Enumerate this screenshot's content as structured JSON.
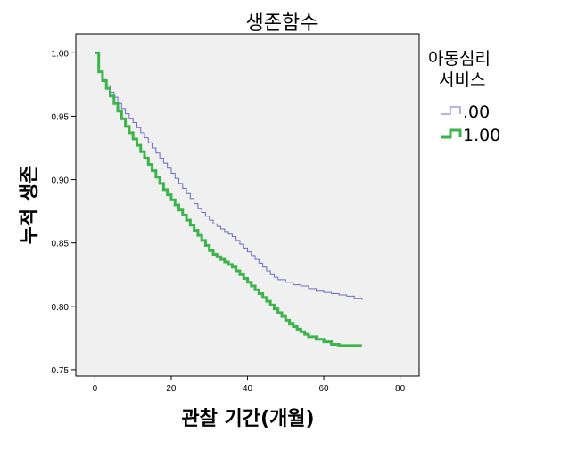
{
  "chart_data": {
    "type": "line",
    "title": "생존함수",
    "xlabel": "관찰 기간(개월)",
    "ylabel": "누적 생존",
    "xlim": [
      -5,
      85
    ],
    "ylim": [
      0.745,
      1.015
    ],
    "x_ticks": [
      0,
      20,
      40,
      60,
      80
    ],
    "y_ticks": [
      0.75,
      0.8,
      0.85,
      0.9,
      0.95,
      1.0
    ],
    "x_tick_labels": [
      "0",
      "20",
      "40",
      "60",
      "80"
    ],
    "y_tick_labels": [
      "0.75",
      "0.80",
      "0.85",
      "0.90",
      "0.95",
      "1.00"
    ],
    "grid": false,
    "legend_title": [
      "아동심리",
      "서비스"
    ],
    "legend_position": "right",
    "series": [
      {
        "name": ".00",
        "color": "#6b6bbf",
        "step": true,
        "x": [
          0,
          1,
          2,
          3,
          4,
          5,
          6,
          7,
          8,
          9,
          10,
          11,
          12,
          13,
          14,
          15,
          16,
          17,
          18,
          19,
          20,
          21,
          22,
          23,
          24,
          25,
          26,
          27,
          28,
          29,
          30,
          31,
          32,
          33,
          34,
          35,
          36,
          37,
          38,
          39,
          40,
          41,
          42,
          43,
          44,
          45,
          46,
          47,
          48,
          50,
          52,
          54,
          56,
          58,
          60,
          62,
          64,
          66,
          68,
          70
        ],
        "y": [
          1.0,
          0.985,
          0.979,
          0.974,
          0.969,
          0.965,
          0.96,
          0.956,
          0.952,
          0.948,
          0.945,
          0.941,
          0.937,
          0.933,
          0.929,
          0.925,
          0.921,
          0.917,
          0.913,
          0.909,
          0.905,
          0.901,
          0.897,
          0.893,
          0.889,
          0.885,
          0.881,
          0.877,
          0.874,
          0.871,
          0.868,
          0.865,
          0.863,
          0.861,
          0.859,
          0.857,
          0.855,
          0.852,
          0.849,
          0.846,
          0.843,
          0.84,
          0.837,
          0.834,
          0.831,
          0.828,
          0.825,
          0.823,
          0.821,
          0.819,
          0.817,
          0.816,
          0.814,
          0.812,
          0.811,
          0.81,
          0.809,
          0.808,
          0.806,
          0.805
        ]
      },
      {
        "name": "1.00",
        "color": "#3cb44b",
        "step": true,
        "x": [
          0,
          1,
          2,
          3,
          4,
          5,
          6,
          7,
          8,
          9,
          10,
          11,
          12,
          13,
          14,
          15,
          16,
          17,
          18,
          19,
          20,
          21,
          22,
          23,
          24,
          25,
          26,
          27,
          28,
          29,
          30,
          31,
          32,
          33,
          34,
          35,
          36,
          37,
          38,
          39,
          40,
          41,
          42,
          43,
          44,
          45,
          46,
          47,
          48,
          49,
          50,
          51,
          52,
          53,
          54,
          55,
          56,
          58,
          60,
          62,
          64,
          66,
          68,
          70
        ],
        "y": [
          1.0,
          0.985,
          0.978,
          0.972,
          0.966,
          0.96,
          0.954,
          0.948,
          0.942,
          0.937,
          0.932,
          0.927,
          0.922,
          0.917,
          0.912,
          0.907,
          0.902,
          0.897,
          0.892,
          0.888,
          0.884,
          0.88,
          0.876,
          0.872,
          0.868,
          0.864,
          0.86,
          0.856,
          0.852,
          0.848,
          0.844,
          0.841,
          0.839,
          0.837,
          0.835,
          0.833,
          0.831,
          0.828,
          0.825,
          0.822,
          0.819,
          0.816,
          0.813,
          0.81,
          0.807,
          0.804,
          0.801,
          0.798,
          0.795,
          0.792,
          0.789,
          0.786,
          0.784,
          0.782,
          0.78,
          0.778,
          0.776,
          0.774,
          0.772,
          0.77,
          0.769,
          0.769,
          0.769,
          0.769
        ]
      }
    ]
  }
}
